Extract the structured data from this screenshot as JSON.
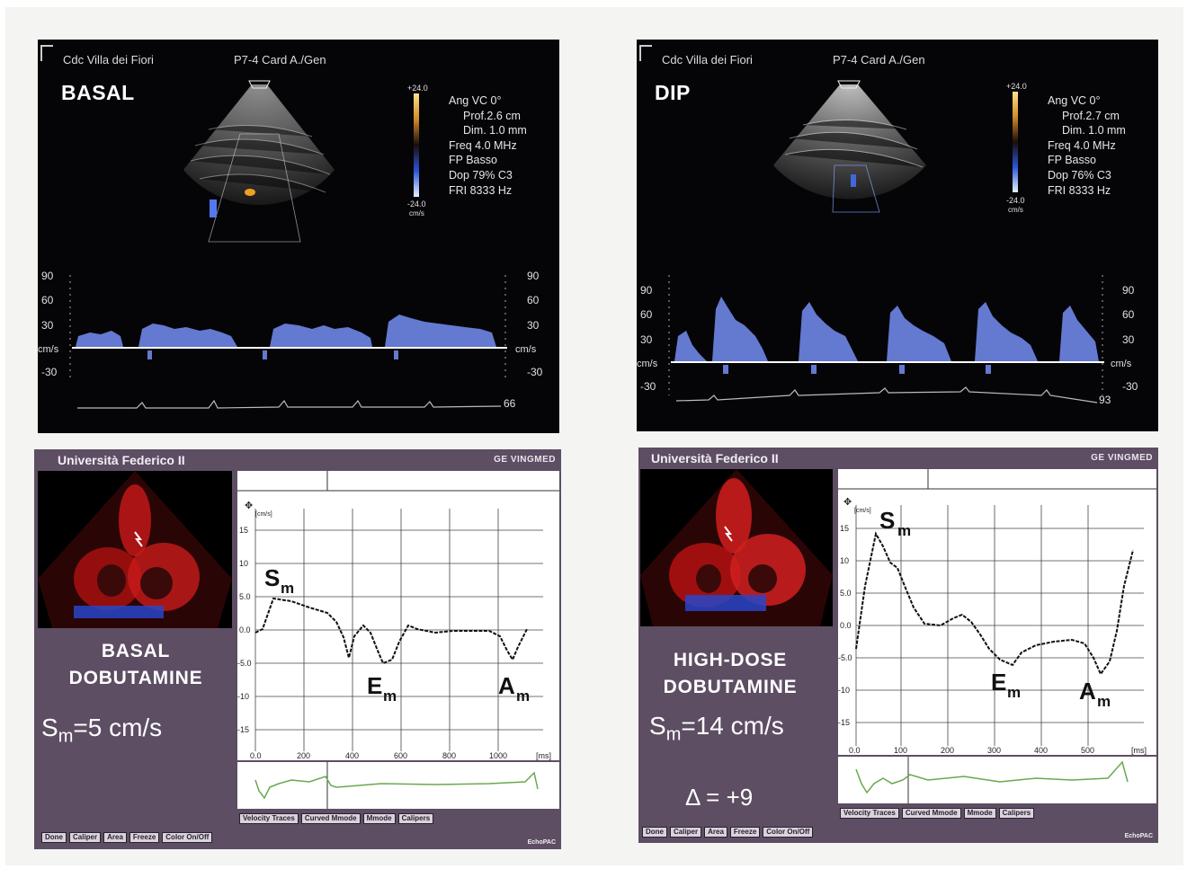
{
  "top_left": {
    "clinic": "Cdc Villa dei Fiori",
    "probe": "P7-4 Card A./Gen",
    "stage": "BASAL",
    "params": [
      "Ang VC 0°",
      "Prof.2.6 cm",
      "Dim. 1.0  mm",
      "Freq 4.0  MHz",
      "FP Basso",
      "Dop 79%  C3",
      "FRI 8333  Hz"
    ],
    "scale_top": "+24.0",
    "scale_bottom": "-24.0",
    "scale_unit": "cm/s",
    "y_ticks": [
      "90",
      "60",
      "30",
      "cm/s",
      "-30"
    ],
    "heart_rate": "66"
  },
  "top_right": {
    "clinic": "Cdc Villa dei Fiori",
    "probe": "P7-4 Card A./Gen",
    "stage": "DIP",
    "params": [
      "Ang VC 0°",
      "Prof.2.7  cm",
      "Dim. 1.0  mm",
      "Freq 4.0  MHz",
      "FP Basso",
      "Dop 76%  C3",
      "FRI 8333  Hz"
    ],
    "scale_top": "+24.0",
    "scale_bottom": "-24.0",
    "scale_unit": "cm/s",
    "y_ticks": [
      "90",
      "60",
      "30",
      "cm/s",
      "-30"
    ],
    "heart_rate": "93"
  },
  "bottom_left": {
    "title": "Università Federico II",
    "brand": "GE VINGMED",
    "stage_line1": "BASAL",
    "stage_line2": "DOBUTAMINE",
    "sm_text": "S",
    "sm_sub": "m",
    "sm_rest": "=5 cm/s",
    "unit_label": "[cm/s]",
    "x_unit": "[ms]",
    "y_ticks": [
      "15",
      "10",
      "5.0",
      "0.0",
      "-5.0",
      "-10",
      "-15"
    ],
    "x_ticks": [
      "0.0",
      "200",
      "400",
      "600",
      "800",
      "1000"
    ],
    "wave_labels": {
      "s": "S",
      "e": "E",
      "a": "A",
      "sub": "m"
    },
    "buttons_graph": [
      "Velocity Traces",
      "Curved Mmode",
      "Mmode",
      "Calipers"
    ],
    "buttons_bottom": [
      "Done",
      "Caliper",
      "Area",
      "Freeze",
      "Color On/Off"
    ],
    "footer": "EchoPAC"
  },
  "bottom_right": {
    "title": "Università Federico II",
    "brand": "GE VINGMED",
    "stage_line1": "HIGH-DOSE",
    "stage_line2": "DOBUTAMINE",
    "sm_text": "S",
    "sm_sub": "m",
    "sm_rest": "=14 cm/s",
    "delta": "Δ = +9",
    "unit_label": "[cm/s]",
    "x_unit": "[ms]",
    "y_ticks": [
      "15",
      "10",
      "5.0",
      "0.0",
      "-5.0",
      "-10",
      "-15"
    ],
    "x_ticks": [
      "0.0",
      "100",
      "200",
      "300",
      "400",
      "500"
    ],
    "wave_labels": {
      "s": "S",
      "e": "E",
      "a": "A",
      "sub": "m"
    },
    "buttons_graph": [
      "Velocity Traces",
      "Curved Mmode",
      "Mmode",
      "Calipers"
    ],
    "buttons_bottom": [
      "Done",
      "Caliper",
      "Area",
      "Freeze",
      "Color On/Off"
    ],
    "footer": "EchoPAC"
  },
  "colors": {
    "tdi_background": "#5d4e63",
    "doppler_background": "#050508",
    "doppler_signal": "#6f86e6",
    "ecg_trace": "#6aa84f"
  }
}
